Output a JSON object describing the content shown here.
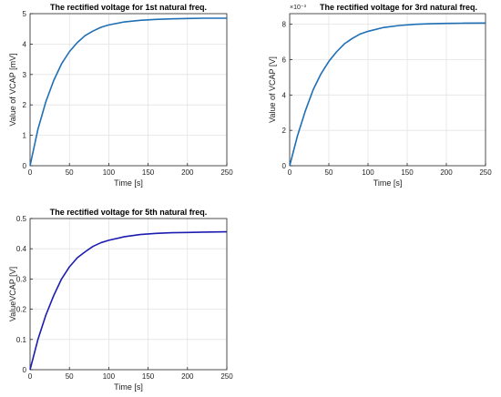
{
  "chart_data": [
    {
      "type": "line",
      "title": "The rectified voltage for 1st natural freq.",
      "xlabel": "Time [s]",
      "ylabel": "Value of  VCAP [mV]",
      "xlim": [
        0,
        250
      ],
      "ylim": [
        0,
        5
      ],
      "xticks": [
        "0",
        "50",
        "100",
        "150",
        "200",
        "250"
      ],
      "yticks": [
        "0",
        "1",
        "2",
        "3",
        "4",
        "5"
      ],
      "grid": true,
      "line_color": "#1f6fb5",
      "x": [
        0,
        10,
        20,
        30,
        40,
        50,
        60,
        70,
        80,
        90,
        100,
        120,
        140,
        160,
        180,
        200,
        220,
        250
      ],
      "y": [
        0,
        1.2,
        2.1,
        2.8,
        3.35,
        3.75,
        4.05,
        4.28,
        4.43,
        4.55,
        4.63,
        4.73,
        4.78,
        4.81,
        4.83,
        4.84,
        4.85,
        4.85
      ]
    },
    {
      "type": "line",
      "title": "The rectified voltage for 3rd natural freq.",
      "exponent": "×10⁻³",
      "xlabel": "Time [s]",
      "ylabel": "Value of VCAP [V]",
      "xlim": [
        0,
        250
      ],
      "ylim": [
        0,
        8.6
      ],
      "xticks": [
        "0",
        "50",
        "100",
        "150",
        "200",
        "250"
      ],
      "yticks": [
        "0",
        "2",
        "4",
        "6",
        "8"
      ],
      "ytick_values": [
        0,
        2,
        4,
        6,
        8
      ],
      "grid": true,
      "line_color": "#1f6fb5",
      "x": [
        0,
        10,
        20,
        30,
        40,
        50,
        60,
        70,
        80,
        90,
        100,
        120,
        140,
        160,
        180,
        200,
        220,
        250
      ],
      "y": [
        0,
        1.7,
        3.1,
        4.3,
        5.2,
        5.9,
        6.45,
        6.9,
        7.2,
        7.45,
        7.6,
        7.82,
        7.93,
        8.0,
        8.03,
        8.05,
        8.06,
        8.07
      ]
    },
    {
      "type": "line",
      "title": "The rectified voltage for 5th natural freq.",
      "xlabel": "Time [s]",
      "ylabel": "ValueVCAP [V]",
      "xlim": [
        0,
        250
      ],
      "ylim": [
        0,
        0.5
      ],
      "xticks": [
        "0",
        "50",
        "100",
        "150",
        "200",
        "250"
      ],
      "yticks": [
        "0",
        "0.1",
        "0.2",
        "0.3",
        "0.4",
        "0.5"
      ],
      "ytick_values": [
        0,
        0.1,
        0.2,
        0.3,
        0.4,
        0.5
      ],
      "grid": true,
      "line_color": "#1c1cb0",
      "x": [
        0,
        10,
        20,
        30,
        40,
        50,
        60,
        70,
        80,
        90,
        100,
        120,
        140,
        160,
        180,
        200,
        220,
        250
      ],
      "y": [
        0,
        0.1,
        0.18,
        0.245,
        0.3,
        0.34,
        0.37,
        0.39,
        0.408,
        0.42,
        0.428,
        0.44,
        0.447,
        0.451,
        0.453,
        0.454,
        0.455,
        0.456
      ]
    }
  ]
}
